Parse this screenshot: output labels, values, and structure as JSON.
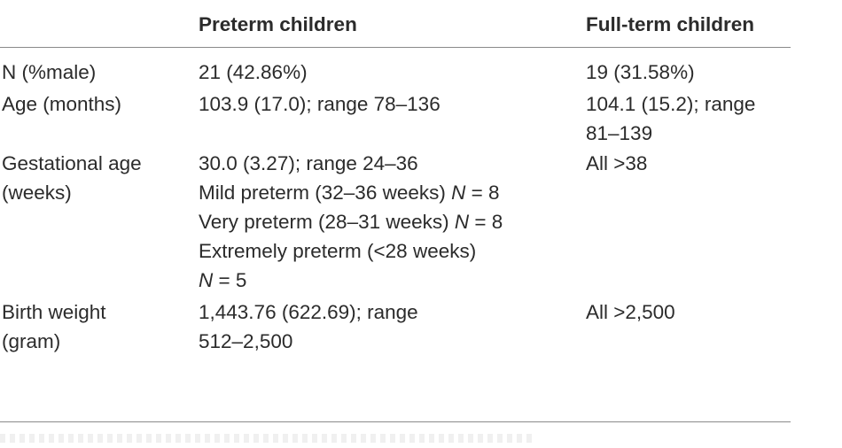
{
  "table": {
    "headers": [
      "",
      "Preterm children",
      "Full-term children"
    ],
    "rows": [
      {
        "label": [
          "N (%male)"
        ],
        "preterm": [
          "21 (42.86%)"
        ],
        "fullterm": [
          "19 (31.58%)"
        ]
      },
      {
        "label": [
          "Age (months)"
        ],
        "preterm": [
          "103.9 (17.0); range 78–136"
        ],
        "fullterm": [
          "104.1 (15.2); range",
          "81–139"
        ]
      },
      {
        "label": [
          "Gestational age",
          "(weeks)"
        ],
        "preterm": [
          "30.0 (3.27); range 24–36",
          "Mild preterm (32–36 weeks) N = 8",
          "Very preterm (28–31 weeks) N = 8",
          "Extremely preterm (<28 weeks)",
          "N = 5"
        ],
        "fullterm": [
          "All >38"
        ]
      },
      {
        "label": [
          "Birth weight",
          "(gram)"
        ],
        "preterm": [
          "1,443.76 (622.69); range",
          "512–2,500"
        ],
        "fullterm": [
          "All >2,500"
        ]
      }
    ]
  }
}
